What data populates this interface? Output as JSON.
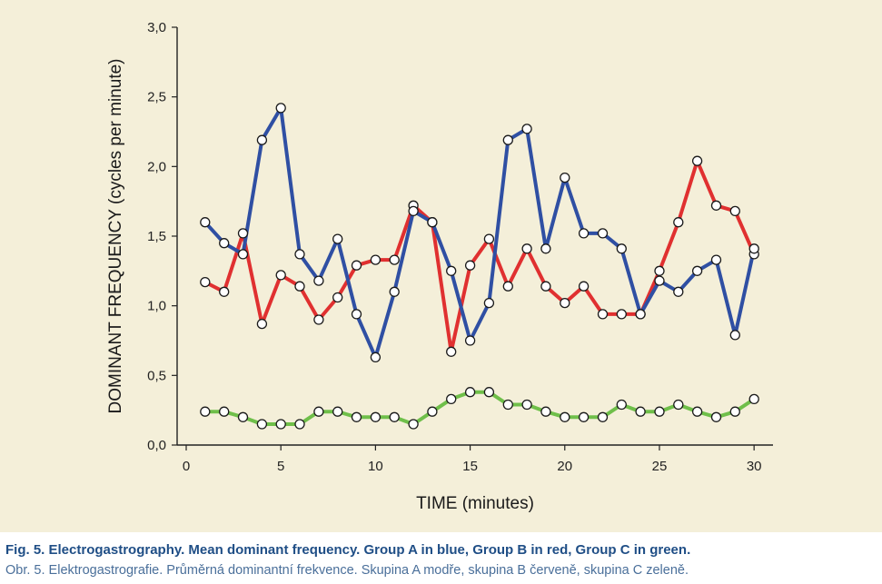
{
  "colors": {
    "background": "#f4efd9",
    "group_a": "#2f4fa3",
    "group_b": "#e03030",
    "group_c": "#6fbf4a",
    "caption_en": "#1f4e86",
    "caption_cz": "#4a6f9a"
  },
  "chart_data": {
    "type": "line",
    "title": "",
    "xlabel": "TIME  (minutes)",
    "ylabel": "DOMINANT FREQUENCY  (cycles per minute)",
    "xlim": [
      0,
      31
    ],
    "ylim": [
      0,
      3.0
    ],
    "x_ticks": [
      0,
      5,
      10,
      15,
      20,
      25,
      30
    ],
    "x_tick_labels": [
      "0",
      "5",
      "10",
      "15",
      "20",
      "25",
      "30"
    ],
    "y_ticks": [
      0,
      0.5,
      1.0,
      1.5,
      2.0,
      2.5,
      3.0
    ],
    "y_tick_labels": [
      "0,0",
      "0,5",
      "1,0",
      "1,5",
      "2,0",
      "2,5",
      "3,0"
    ],
    "grid": false,
    "legend": "none",
    "x": [
      1,
      2,
      3,
      4,
      5,
      6,
      7,
      8,
      9,
      10,
      11,
      12,
      13,
      14,
      15,
      16,
      17,
      18,
      19,
      20,
      21,
      22,
      23,
      24,
      25,
      26,
      27,
      28,
      29,
      30
    ],
    "series": [
      {
        "color": "#e03030",
        "values": [
          1.17,
          1.1,
          1.52,
          0.87,
          1.22,
          1.14,
          0.9,
          1.06,
          1.29,
          1.33,
          1.33,
          1.72,
          1.6,
          0.67,
          1.29,
          1.48,
          1.14,
          1.41,
          1.14,
          1.02,
          1.14,
          0.94,
          0.94,
          0.94,
          1.25,
          1.6,
          2.04,
          1.72,
          1.68,
          1.37
        ]
      },
      {
        "color": "#2f4fa3",
        "values": [
          1.6,
          1.45,
          1.37,
          2.19,
          2.42,
          1.37,
          1.18,
          1.48,
          0.94,
          0.63,
          1.1,
          1.68,
          1.6,
          1.25,
          0.75,
          1.02,
          2.19,
          2.27,
          1.41,
          1.92,
          1.52,
          1.52,
          1.41,
          0.94,
          1.18,
          1.1,
          1.25,
          1.33,
          0.79,
          1.41
        ]
      },
      {
        "color": "#6fbf4a",
        "values": [
          0.24,
          0.24,
          0.2,
          0.15,
          0.15,
          0.15,
          0.24,
          0.24,
          0.2,
          0.2,
          0.2,
          0.15,
          0.24,
          0.33,
          0.38,
          0.38,
          0.29,
          0.29,
          0.24,
          0.2,
          0.2,
          0.2,
          0.29,
          0.24,
          0.24,
          0.29,
          0.24,
          0.2,
          0.24,
          0.33
        ]
      }
    ]
  },
  "caption": {
    "english": "Fig. 5. Electrogastrography. Mean dominant frequency. Group A in blue, Group B in red, Group C in green.",
    "czech": "Obr. 5. Elektrogastrografie. Průměrná dominantní frekvence. Skupina A modře, skupina B červeně, skupina C zeleně."
  }
}
